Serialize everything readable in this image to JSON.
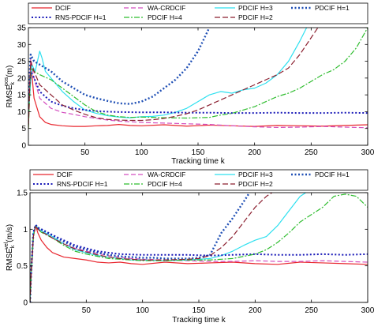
{
  "chart_data": [
    {
      "type": "line",
      "xlabel": "Tracking time k",
      "ylabel_main": "RMSE",
      "ylabel_sub": "k",
      "ylabel_sup": "pos",
      "ylabel_unit": "(m)",
      "xlim": [
        0,
        300
      ],
      "ylim": [
        0,
        35
      ],
      "xticks": [
        50,
        100,
        150,
        200,
        250,
        300
      ],
      "yticks": [
        0,
        5,
        10,
        15,
        20,
        25,
        30,
        35
      ],
      "legend_position": "top",
      "series": [
        {
          "name": "DCIF",
          "color": "#e8262e",
          "dash": "",
          "width": 1.2,
          "x": [
            0,
            2,
            5,
            10,
            15,
            20,
            30,
            40,
            50,
            60,
            70,
            80,
            90,
            100,
            120,
            140,
            160,
            180,
            200,
            220,
            240,
            260,
            280,
            300
          ],
          "y": [
            5,
            25,
            14,
            8.5,
            6.8,
            6.2,
            5.8,
            5.6,
            5.6,
            5.8,
            5.9,
            6.2,
            5.9,
            5.8,
            6.1,
            5.7,
            6.0,
            5.8,
            5.6,
            5.9,
            5.8,
            5.7,
            5.9,
            6.1
          ]
        },
        {
          "name": "WA-CRDCIF",
          "color": "#d44fc0",
          "dash": "6,3",
          "width": 1.2,
          "x": [
            0,
            2,
            5,
            10,
            20,
            30,
            40,
            50,
            60,
            70,
            80,
            90,
            100,
            120,
            140,
            160,
            180,
            200,
            220,
            240,
            260,
            280,
            300
          ],
          "y": [
            6,
            26,
            20,
            14,
            11,
            9.8,
            9.2,
            8.5,
            8.0,
            7.5,
            7.2,
            7.0,
            6.8,
            6.6,
            6.4,
            6.2,
            5.8,
            5.5,
            5.3,
            5.4,
            5.6,
            5.4,
            5.2
          ]
        },
        {
          "name": "PDCIF H=3",
          "color": "#2ee0ef",
          "dash": "",
          "width": 1.2,
          "x": [
            0,
            3,
            6,
            10,
            12,
            15,
            20,
            30,
            40,
            50,
            60,
            70,
            80,
            90,
            100,
            110,
            120,
            130,
            140,
            150,
            160,
            170,
            180,
            190,
            200,
            210,
            220,
            230,
            240,
            246
          ],
          "y": [
            9,
            24,
            22,
            28,
            26,
            22,
            20,
            16,
            13,
            10.5,
            9.5,
            8.8,
            8.4,
            8.2,
            8.5,
            8.6,
            9.0,
            9.8,
            11,
            13,
            15,
            16,
            15.5,
            16.5,
            17,
            18.5,
            21,
            25,
            31,
            35
          ]
        },
        {
          "name": "PDCIF H=1",
          "color": "#1f4fb5",
          "dash": "2,2.5",
          "width": 2.4,
          "x": [
            0,
            2,
            5,
            10,
            20,
            30,
            40,
            50,
            60,
            70,
            80,
            90,
            100,
            110,
            120,
            130,
            140,
            150,
            160
          ],
          "y": [
            14,
            27,
            25,
            24,
            22,
            19,
            17,
            15,
            14,
            13.2,
            12.5,
            12.3,
            13,
            14.5,
            17,
            19.5,
            23,
            28,
            35
          ]
        },
        {
          "name": "RNS-PDCIF H=1",
          "color": "#1a1ab8",
          "dash": "2,2.5",
          "width": 2.0,
          "x": [
            0,
            2,
            5,
            10,
            20,
            30,
            40,
            50,
            60,
            70,
            80,
            100,
            120,
            140,
            160,
            180,
            200,
            220,
            240,
            260,
            280,
            300
          ],
          "y": [
            12,
            22,
            20,
            16,
            13,
            11.8,
            11,
            10.5,
            10.2,
            10.0,
            9.9,
            9.8,
            9.8,
            9.7,
            9.7,
            9.6,
            9.6,
            9.7,
            9.6,
            9.6,
            9.7,
            9.6
          ]
        },
        {
          "name": "PDCIF H=4",
          "color": "#2fbd2f",
          "dash": "7,2,2,2",
          "width": 1.2,
          "x": [
            0,
            2,
            5,
            10,
            20,
            30,
            40,
            50,
            60,
            70,
            80,
            90,
            100,
            120,
            140,
            160,
            170,
            180,
            190,
            200,
            210,
            220,
            230,
            240,
            250,
            260,
            270,
            280,
            290,
            300
          ],
          "y": [
            5,
            23,
            22,
            21,
            19.5,
            17,
            14.5,
            12,
            10,
            9,
            8.5,
            8.3,
            8.4,
            8.2,
            8.1,
            8.3,
            9.0,
            9.5,
            10.5,
            11.5,
            13,
            14.5,
            15.5,
            17,
            19,
            21,
            22.5,
            25,
            29,
            35
          ]
        },
        {
          "name": "PDCIF H=2",
          "color": "#8b1f2f",
          "dash": "7,3",
          "width": 1.2,
          "x": [
            0,
            2,
            5,
            10,
            20,
            30,
            40,
            50,
            60,
            70,
            80,
            90,
            100,
            110,
            120,
            130,
            140,
            150,
            160,
            170,
            180,
            190,
            200,
            210,
            220,
            230,
            240,
            250,
            256
          ],
          "y": [
            6,
            25,
            22,
            18,
            15,
            12,
            10.5,
            9.2,
            8.2,
            7.7,
            7.5,
            7.4,
            7.4,
            7.6,
            8.0,
            8.6,
            9.4,
            10.5,
            12,
            13.5,
            15,
            16.5,
            18,
            19.5,
            21,
            23,
            27,
            32,
            35
          ]
        }
      ]
    },
    {
      "type": "line",
      "xlabel": "Tracking time k",
      "ylabel_main": "RMSE",
      "ylabel_sub": "k",
      "ylabel_sup": "vel",
      "ylabel_unit": "(m/s)",
      "xlim": [
        0,
        300
      ],
      "ylim": [
        0,
        1.5
      ],
      "xticks": [
        50,
        100,
        150,
        200,
        250,
        300
      ],
      "yticks": [
        0,
        0.5,
        1,
        1.5
      ],
      "legend_position": "top",
      "series": [
        {
          "name": "DCIF",
          "color": "#e8262e",
          "dash": "",
          "width": 1.2,
          "x": [
            0,
            1,
            3,
            5,
            7,
            10,
            15,
            20,
            30,
            40,
            50,
            60,
            70,
            80,
            90,
            100,
            120,
            140,
            160,
            180,
            200,
            220,
            240,
            260,
            280,
            300
          ],
          "y": [
            0,
            0.35,
            0.9,
            1.05,
            0.95,
            0.85,
            0.75,
            0.68,
            0.62,
            0.6,
            0.58,
            0.55,
            0.54,
            0.55,
            0.53,
            0.52,
            0.55,
            0.53,
            0.54,
            0.55,
            0.53,
            0.52,
            0.55,
            0.54,
            0.53,
            0.52
          ]
        },
        {
          "name": "WA-CRDCIF",
          "color": "#d44fc0",
          "dash": "6,3",
          "width": 1.2,
          "x": [
            0,
            1,
            3,
            5,
            7,
            10,
            20,
            30,
            40,
            50,
            60,
            70,
            80,
            90,
            100,
            120,
            140,
            160,
            180,
            200,
            220,
            240,
            260,
            280,
            300
          ],
          "y": [
            0,
            0.4,
            0.9,
            1.05,
            1.0,
            0.98,
            0.88,
            0.8,
            0.74,
            0.7,
            0.67,
            0.64,
            0.62,
            0.6,
            0.59,
            0.58,
            0.57,
            0.56,
            0.56,
            0.57,
            0.56,
            0.56,
            0.57,
            0.56,
            0.55
          ]
        },
        {
          "name": "PDCIF H=3",
          "color": "#2ee0ef",
          "dash": "",
          "width": 1.2,
          "x": [
            0,
            1,
            3,
            5,
            7,
            10,
            20,
            30,
            40,
            50,
            60,
            70,
            80,
            90,
            100,
            120,
            140,
            160,
            170,
            180,
            190,
            200,
            210,
            220,
            230,
            240,
            245
          ],
          "y": [
            0,
            0.4,
            0.95,
            1.05,
            1.02,
            0.98,
            0.9,
            0.8,
            0.72,
            0.68,
            0.64,
            0.62,
            0.6,
            0.58,
            0.58,
            0.57,
            0.58,
            0.6,
            0.64,
            0.7,
            0.78,
            0.85,
            0.9,
            1.05,
            1.25,
            1.45,
            1.5
          ]
        },
        {
          "name": "PDCIF H=1",
          "color": "#1f4fb5",
          "dash": "2,2.5",
          "width": 2.4,
          "x": [
            0,
            1,
            3,
            5,
            7,
            10,
            20,
            30,
            40,
            50,
            60,
            70,
            80,
            90,
            100,
            110,
            120,
            130,
            140,
            150,
            160,
            165,
            170,
            180,
            190,
            195
          ],
          "y": [
            0,
            0.4,
            0.95,
            1.06,
            1.02,
            1.0,
            0.92,
            0.83,
            0.76,
            0.72,
            0.68,
            0.65,
            0.63,
            0.62,
            0.61,
            0.61,
            0.6,
            0.6,
            0.6,
            0.61,
            0.65,
            0.8,
            0.95,
            1.15,
            1.38,
            1.5
          ]
        },
        {
          "name": "RNS-PDCIF H=1",
          "color": "#1a1ab8",
          "dash": "2,2.5",
          "width": 2.0,
          "x": [
            0,
            1,
            3,
            5,
            7,
            10,
            20,
            30,
            40,
            50,
            60,
            70,
            80,
            100,
            120,
            140,
            160,
            180,
            200,
            220,
            240,
            260,
            280,
            300
          ],
          "y": [
            0,
            0.4,
            0.95,
            1.06,
            1.02,
            1.0,
            0.92,
            0.85,
            0.78,
            0.74,
            0.7,
            0.68,
            0.66,
            0.65,
            0.65,
            0.65,
            0.64,
            0.65,
            0.66,
            0.65,
            0.65,
            0.66,
            0.65,
            0.66
          ]
        },
        {
          "name": "PDCIF H=4",
          "color": "#2fbd2f",
          "dash": "7,2,2,2",
          "width": 1.2,
          "x": [
            0,
            1,
            3,
            5,
            7,
            10,
            20,
            30,
            40,
            50,
            60,
            70,
            80,
            100,
            120,
            140,
            160,
            180,
            200,
            210,
            220,
            230,
            240,
            250,
            260,
            270,
            280,
            290,
            300
          ],
          "y": [
            0,
            0.4,
            0.9,
            1.04,
            1.0,
            0.96,
            0.88,
            0.78,
            0.7,
            0.66,
            0.63,
            0.6,
            0.59,
            0.57,
            0.57,
            0.58,
            0.58,
            0.6,
            0.66,
            0.72,
            0.82,
            0.95,
            1.1,
            1.2,
            1.3,
            1.45,
            1.48,
            1.45,
            1.3
          ]
        },
        {
          "name": "PDCIF H=2",
          "color": "#8b1f2f",
          "dash": "7,3",
          "width": 1.2,
          "x": [
            0,
            1,
            3,
            5,
            7,
            10,
            20,
            30,
            40,
            50,
            60,
            70,
            80,
            100,
            120,
            140,
            150,
            160,
            170,
            180,
            190,
            200,
            210,
            215
          ],
          "y": [
            0,
            0.4,
            0.9,
            1.05,
            1.0,
            0.97,
            0.88,
            0.8,
            0.73,
            0.69,
            0.65,
            0.62,
            0.6,
            0.58,
            0.58,
            0.59,
            0.6,
            0.64,
            0.75,
            0.9,
            1.1,
            1.3,
            1.45,
            1.5
          ]
        }
      ]
    }
  ]
}
